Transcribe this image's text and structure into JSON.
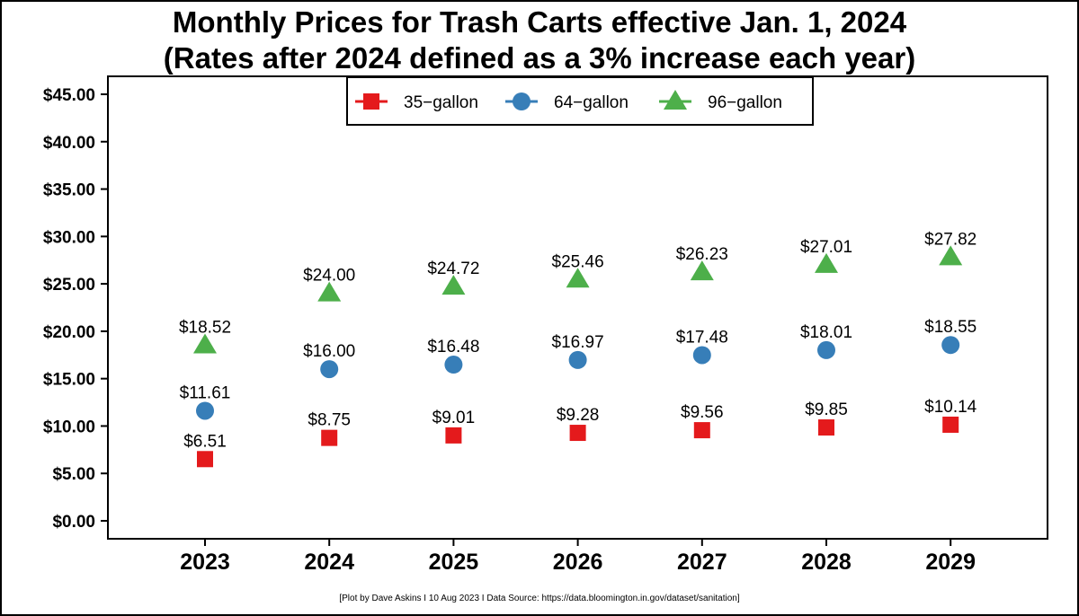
{
  "chart_data": {
    "type": "scatter",
    "title": "Monthly Prices for Trash Carts effective Jan. 1, 2024",
    "subtitle": "(Rates after 2024 defined as a 3% increase each year)",
    "xlabel": "",
    "ylabel": "",
    "categories": [
      "2023",
      "2024",
      "2025",
      "2026",
      "2027",
      "2028",
      "2029"
    ],
    "ylim": [
      0,
      45
    ],
    "yticks": [
      0,
      5,
      10,
      15,
      20,
      25,
      30,
      35,
      40,
      45
    ],
    "ytick_labels": [
      "$0.00",
      "$5.00",
      "$10.00",
      "$15.00",
      "$20.00",
      "$25.00",
      "$30.00",
      "$35.00",
      "$40.00",
      "$45.00"
    ],
    "grid": false,
    "legend_position": "top-center",
    "series": [
      {
        "name": "35−gallon",
        "marker": "square",
        "color": "#e41a1c",
        "values": [
          6.51,
          8.75,
          9.01,
          9.28,
          9.56,
          9.85,
          10.14
        ],
        "labels": [
          "$6.51",
          "$8.75",
          "$9.01",
          "$9.28",
          "$9.56",
          "$9.85",
          "$10.14"
        ]
      },
      {
        "name": "64−gallon",
        "marker": "circle",
        "color": "#377eb8",
        "values": [
          11.61,
          16.0,
          16.48,
          16.97,
          17.48,
          18.01,
          18.55
        ],
        "labels": [
          "$11.61",
          "$16.00",
          "$16.48",
          "$16.97",
          "$17.48",
          "$18.01",
          "$18.55"
        ]
      },
      {
        "name": "96−gallon",
        "marker": "triangle",
        "color": "#4daf4a",
        "values": [
          18.52,
          24.0,
          24.72,
          25.46,
          26.23,
          27.01,
          27.82
        ],
        "labels": [
          "$18.52",
          "$24.00",
          "$24.72",
          "$25.46",
          "$26.23",
          "$27.01",
          "$27.82"
        ]
      }
    ]
  },
  "caption": "[Plot by Dave Askins I 10 Aug 2023 I Data Source: https://data.bloomington.in.gov/dataset/sanitation]"
}
